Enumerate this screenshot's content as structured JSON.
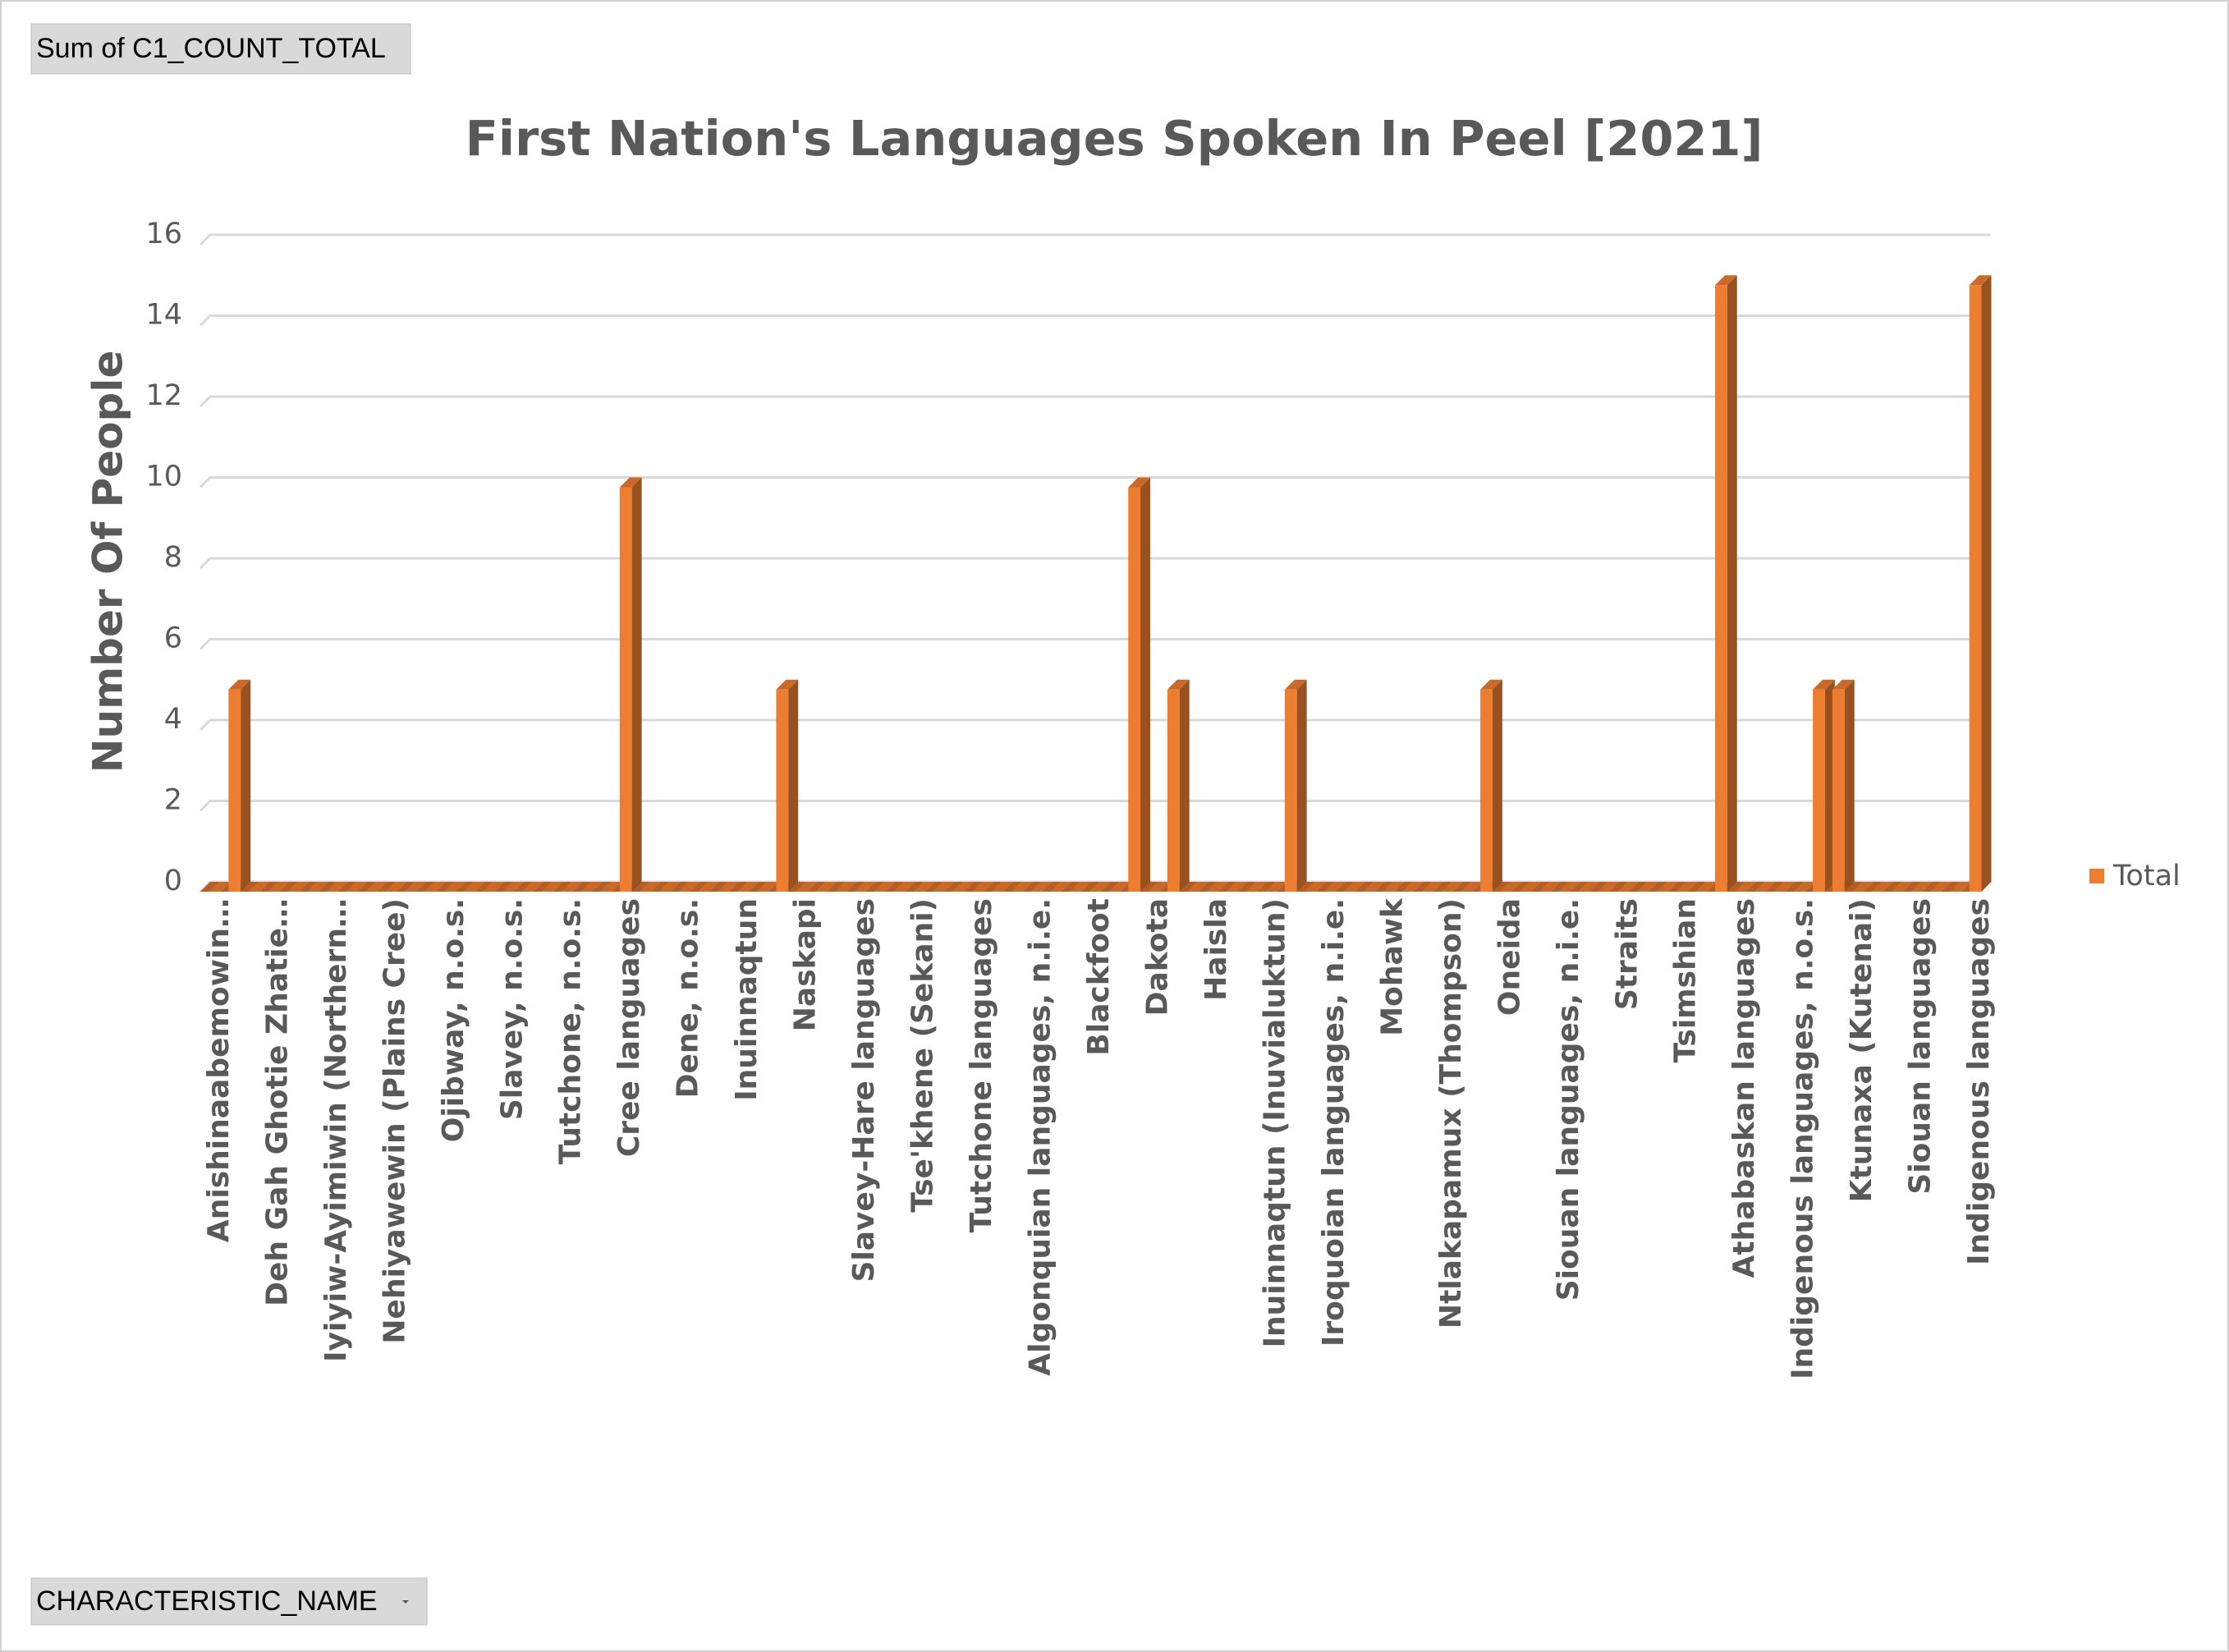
{
  "pivot_buttons": {
    "value_field": "Sum of C1_COUNT_TOTAL",
    "axis_field": "CHARACTERISTIC_NAME"
  },
  "chart_data": {
    "type": "bar3d",
    "title": "First Nation's Languages Spoken In Peel [2021]",
    "y_label": "Number Of People",
    "categories": [
      "Anishinaabemowin…",
      null,
      null,
      "Deh Gah Ghotie Zhatie…",
      null,
      null,
      "Iyiyiw-Ayimiwin (Northern…",
      null,
      null,
      "Nehiyawewin (Plains Cree)",
      null,
      null,
      "Ojibway, n.o.s.",
      null,
      null,
      "Slavey, n.o.s.",
      null,
      null,
      "Tutchone, n.o.s.",
      null,
      null,
      "Cree languages",
      null,
      null,
      "Dene, n.o.s.",
      null,
      null,
      "Inuinnaqtun",
      null,
      null,
      "Naskapi",
      null,
      null,
      "Slavey-Hare languages",
      null,
      null,
      "Tse'khene (Sekani)",
      null,
      null,
      "Tutchone languages",
      null,
      null,
      "Algonquian languages, n.i.e.",
      null,
      null,
      "Blackfoot",
      null,
      null,
      "Dakota",
      null,
      null,
      "Haisla",
      null,
      null,
      "Inuinnaqtun (Inuvialuktun)",
      null,
      null,
      "Iroquoian languages, n.i.e.",
      null,
      null,
      "Mohawk",
      null,
      null,
      "Ntlakapamux (Thompson)",
      null,
      null,
      "Oneida",
      null,
      null,
      "Siouan languages, n.i.e.",
      null,
      null,
      "Straits",
      null,
      null,
      "Tsimshian",
      null,
      null,
      "Athabaskan languages",
      null,
      null,
      "Indigenous languages, n.o.s.",
      null,
      null,
      "Ktunaxa (Kutenai)",
      null,
      null,
      "Siouan languages",
      null,
      null,
      "Indigenous languages"
    ],
    "series": [
      {
        "name": "Total",
        "color": "#ed7d31",
        "values": [
          0,
          5,
          0,
          0,
          0,
          0,
          0,
          0,
          0,
          0,
          0,
          0,
          0,
          0,
          0,
          0,
          0,
          0,
          0,
          0,
          0,
          10,
          0,
          0,
          0,
          0,
          0,
          0,
          0,
          5,
          0,
          0,
          0,
          0,
          0,
          0,
          0,
          0,
          0,
          0,
          0,
          0,
          0,
          0,
          0,
          0,
          0,
          10,
          0,
          5,
          0,
          0,
          0,
          0,
          0,
          5,
          0,
          0,
          0,
          0,
          0,
          0,
          0,
          0,
          0,
          5,
          0,
          0,
          0,
          0,
          0,
          0,
          0,
          0,
          0,
          0,
          0,
          15,
          0,
          0,
          0,
          0,
          5,
          5,
          0,
          0,
          0,
          0,
          0,
          0,
          15
        ]
      }
    ],
    "ylim": [
      0,
      16
    ],
    "yticks": [
      0,
      2,
      4,
      6,
      8,
      10,
      12,
      14,
      16
    ],
    "grid": true,
    "legend": "right"
  }
}
